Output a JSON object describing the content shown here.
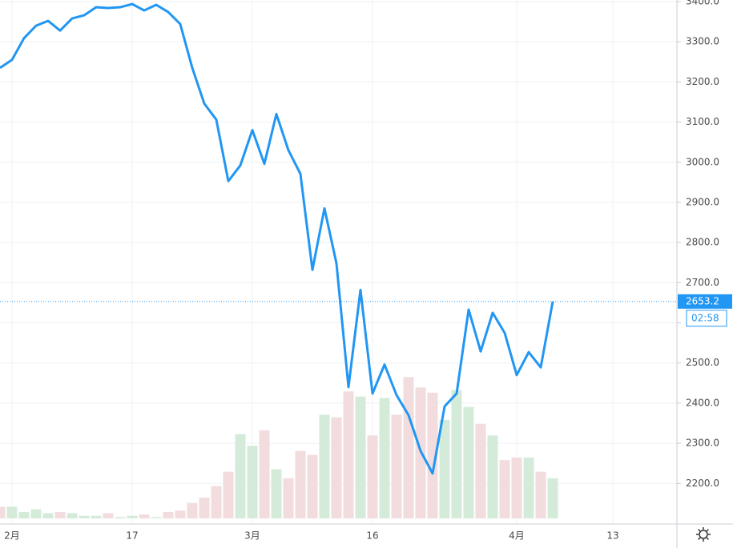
{
  "chart_data": {
    "type": "line",
    "categories": [
      null,
      "2月",
      null,
      null,
      null,
      null,
      null,
      null,
      null,
      null,
      null,
      "17",
      null,
      null,
      null,
      null,
      null,
      null,
      null,
      null,
      null,
      "3月",
      null,
      null,
      null,
      null,
      null,
      null,
      null,
      null,
      null,
      "16",
      null,
      null,
      null,
      null,
      null,
      null,
      null,
      null,
      null,
      null,
      null,
      "4月",
      null,
      null,
      null,
      null,
      null,
      null,
      null,
      "13",
      null,
      null,
      null,
      null,
      null
    ],
    "series": [
      {
        "color": "#2196f3",
        "values": [
          3235,
          3255,
          3309,
          3340,
          3352,
          3328,
          3358,
          3366,
          3386,
          3384,
          3386,
          3394,
          3378,
          3392,
          3374,
          3344,
          3235,
          3146,
          3106,
          2953,
          2992,
          3080,
          2996,
          3120,
          3030,
          2971,
          2732,
          2885,
          2748,
          2440,
          2682,
          2424,
          2496,
          2420,
          2370,
          2281,
          2225,
          2392,
          2424,
          2633,
          2529,
          2625,
          2575,
          2470,
          2527,
          2489,
          2653.2,
          null,
          null,
          null,
          null,
          null,
          null,
          null,
          null,
          null,
          null
        ]
      },
      {
        "type": "volume",
        "up_color": "#d5ebd9",
        "down_color": "#f2dcdd",
        "directions": [
          "down",
          "up",
          "up",
          "up",
          "up",
          "down",
          "up",
          "up",
          "up",
          "down",
          "up",
          "up",
          "down",
          "up",
          "down",
          "down",
          "down",
          "down",
          "down",
          "down",
          "up",
          "up",
          "down",
          "up",
          "down",
          "down",
          "down",
          "up",
          "down",
          "down",
          "up",
          "down",
          "up",
          "down",
          "down",
          "down",
          "down",
          "up",
          "up",
          "up",
          "down",
          "up",
          "down",
          "down",
          "up",
          "down",
          "up"
        ],
        "values": [
          9,
          9,
          5,
          7,
          4,
          5,
          4,
          2,
          2,
          4,
          1,
          2,
          3,
          1,
          5,
          6,
          12,
          16,
          25,
          36,
          65,
          56,
          68,
          38,
          31,
          52,
          49,
          80,
          78,
          98,
          94,
          64,
          93,
          80,
          109,
          101,
          97,
          76,
          99,
          86,
          73,
          64,
          45,
          47,
          47,
          36,
          31,
          null,
          null,
          null,
          null,
          null,
          null,
          null,
          null,
          null,
          null
        ]
      }
    ],
    "volume_lim": [
      0,
      400
    ],
    "ylim": [
      2099,
      3404
    ],
    "yticks": [
      {
        "value": 2200,
        "label": "2200.0"
      },
      {
        "value": 2300,
        "label": "2300.0"
      },
      {
        "value": 2400,
        "label": "2400.0"
      },
      {
        "value": 2500,
        "label": "2500.0"
      },
      {
        "value": 2600,
        "label": "2600.0"
      },
      {
        "value": 2700,
        "label": "2700.0"
      },
      {
        "value": 2800,
        "label": "2800.0"
      },
      {
        "value": 2900,
        "label": "2900.0"
      },
      {
        "value": 3000,
        "label": "3000.0"
      },
      {
        "value": 3100,
        "label": "3100.0"
      },
      {
        "value": 3200,
        "label": "3200.0"
      },
      {
        "value": 3300,
        "label": "3300.0"
      },
      {
        "value": 3400,
        "label": "3400.0"
      }
    ],
    "grid": true,
    "countdown": "02:58"
  }
}
